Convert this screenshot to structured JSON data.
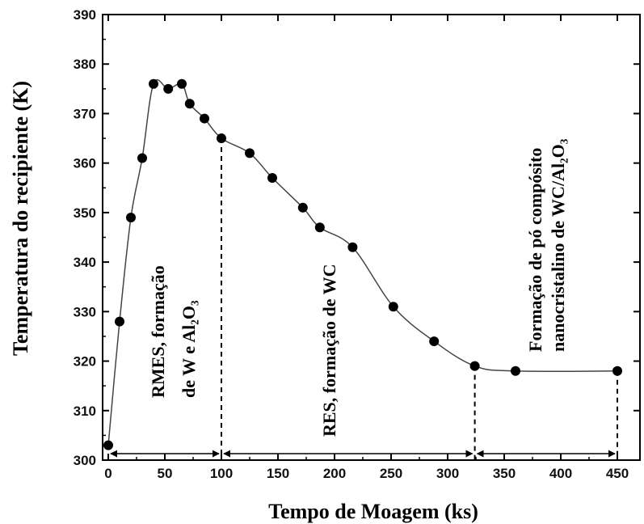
{
  "chart_data": {
    "type": "scatter",
    "title": "",
    "xlabel": "Tempo de Moagem (ks)",
    "ylabel": "Temperatura do recipiente (K)",
    "xlim": [
      -5,
      470
    ],
    "ylim": [
      300,
      390
    ],
    "x_ticks": [
      0,
      50,
      100,
      150,
      200,
      250,
      300,
      350,
      400,
      450
    ],
    "y_ticks": [
      300,
      310,
      320,
      330,
      340,
      350,
      360,
      370,
      380,
      390
    ],
    "grid": false,
    "series": [
      {
        "x": [
          0,
          10,
          20,
          30,
          40,
          53,
          65,
          72,
          85,
          100,
          125,
          145,
          172,
          187,
          216,
          252,
          288,
          324,
          360,
          450
        ],
        "y": [
          303,
          328,
          349,
          361,
          376,
          375,
          376,
          372,
          369,
          365,
          362,
          357,
          351,
          347,
          343,
          331,
          324,
          319,
          318,
          318
        ],
        "marker": "filled-circle",
        "line": "smooth"
      }
    ],
    "stage_boundaries_x": [
      100,
      324,
      450
    ],
    "annotations": [
      {
        "lines": [
          "RMES, formação",
          "de W e Al₂O₃"
        ]
      },
      {
        "lines": [
          "RES, formação de WC"
        ]
      },
      {
        "lines": [
          "Formação de pó compósito",
          "nanocristalino de WC/Al₂O₃"
        ]
      }
    ]
  }
}
